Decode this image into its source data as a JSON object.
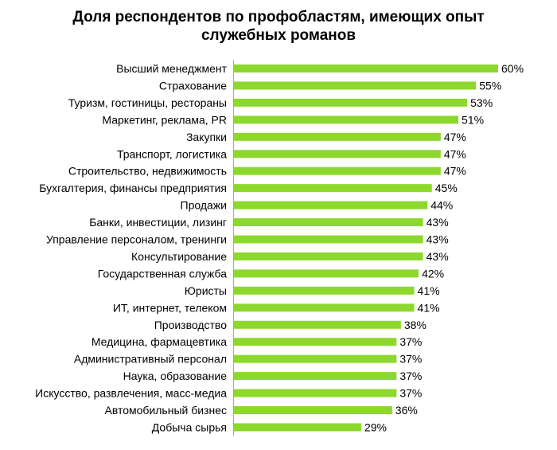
{
  "chart_data": {
    "type": "bar",
    "orientation": "horizontal",
    "title_lines": [
      "Доля респондентов по профобластям, имеющих опыт",
      "служебных романов"
    ],
    "categories": [
      "Высший менеджмент",
      "Страхование",
      "Туризм, гостиницы, рестораны",
      "Маркетинг, реклама, PR",
      "Закупки",
      "Транспорт, логистика",
      "Строительство, недвижимость",
      "Бухгалтерия, финансы предприятия",
      "Продажи",
      "Банки, инвестиции, лизинг",
      "Управление персоналом, тренинги",
      "Консультирование",
      "Государственная служба",
      "Юристы",
      "ИТ, интернет, телеком",
      "Производство",
      "Медицина, фармацевтика",
      "Административный персонал",
      "Наука, образование",
      "Искусство, развлечения, масс-медиа",
      "Автомобильный бизнес",
      "Добыча сырья"
    ],
    "values": [
      60,
      55,
      53,
      51,
      47,
      47,
      47,
      45,
      44,
      43,
      43,
      43,
      42,
      41,
      41,
      38,
      37,
      37,
      37,
      37,
      36,
      29
    ],
    "value_labels": [
      "60%",
      "55%",
      "53%",
      "51%",
      "47%",
      "47%",
      "47%",
      "45%",
      "44%",
      "43%",
      "43%",
      "43%",
      "42%",
      "41%",
      "41%",
      "38%",
      "37%",
      "37%",
      "37%",
      "37%",
      "36%",
      "29%"
    ],
    "unit": "%",
    "xlim": [
      0,
      60
    ],
    "bar_color": "#8DD82D",
    "axis_color": "#A6A6A6",
    "grid": false,
    "legend": "none"
  }
}
